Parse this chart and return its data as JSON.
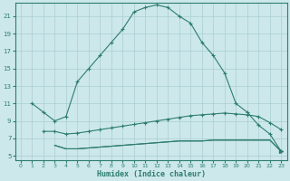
{
  "xlabel": "Humidex (Indice chaleur)",
  "color": "#2e7d6e",
  "bg_color": "#cce8eb",
  "grid_color": "#aacdd2",
  "ylim": [
    4.5,
    22.5
  ],
  "xlim": [
    -0.5,
    23.5
  ],
  "yticks": [
    5,
    7,
    9,
    11,
    13,
    15,
    17,
    19,
    21
  ],
  "xticks": [
    0,
    1,
    2,
    3,
    4,
    5,
    6,
    7,
    8,
    9,
    10,
    11,
    12,
    13,
    14,
    15,
    16,
    17,
    18,
    19,
    20,
    21,
    22,
    23
  ],
  "top_x": [
    1,
    2,
    3,
    4,
    5,
    6,
    7,
    8,
    9,
    10,
    11,
    12,
    13,
    14,
    15,
    16,
    17,
    18,
    19,
    20,
    21,
    22,
    23
  ],
  "top_y": [
    11.0,
    10.0,
    9.0,
    9.5,
    13.5,
    15.0,
    16.5,
    18.0,
    19.5,
    21.5,
    22.0,
    22.3,
    22.0,
    21.0,
    20.2,
    18.0,
    16.5,
    14.5,
    11.0,
    10.0,
    8.5,
    7.5,
    5.5
  ],
  "mid_x": [
    2,
    3,
    4,
    5,
    6,
    7,
    8,
    9,
    10,
    11,
    12,
    13,
    14,
    15,
    16,
    17,
    18,
    19,
    20,
    21,
    22,
    23
  ],
  "mid_y": [
    7.8,
    7.8,
    7.5,
    7.6,
    7.8,
    8.0,
    8.2,
    8.4,
    8.6,
    8.8,
    9.0,
    9.2,
    9.4,
    9.6,
    9.7,
    9.8,
    9.9,
    9.8,
    9.7,
    9.5,
    8.8,
    8.0
  ],
  "bot_x": [
    3,
    4,
    5,
    6,
    7,
    8,
    9,
    10,
    11,
    12,
    13,
    14,
    15,
    16,
    17,
    18,
    19,
    20,
    21,
    22,
    23
  ],
  "bot_y": [
    6.2,
    5.8,
    5.8,
    5.9,
    6.0,
    6.1,
    6.2,
    6.3,
    6.4,
    6.5,
    6.6,
    6.7,
    6.7,
    6.7,
    6.8,
    6.8,
    6.8,
    6.8,
    6.8,
    6.8,
    5.5
  ]
}
